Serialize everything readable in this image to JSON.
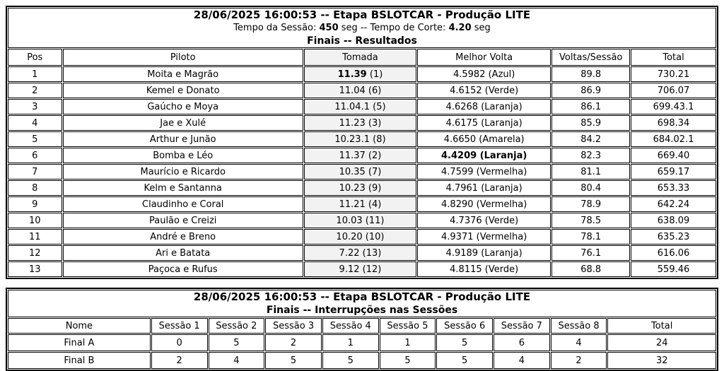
{
  "colors": {
    "border": "#000000",
    "text": "#000000",
    "tomada_column_bg": "#f2f2f2",
    "page_bg": "#ffffff"
  },
  "results": {
    "title1": "28/06/2025 16:00:53 -- Etapa BSLOTCAR - Produção LITE",
    "title2": {
      "pre": "Tempo da Sessão: ",
      "session_time": "450",
      "mid": " seg -- Tempo de Corte: ",
      "cut_time": "4.20",
      "post": " seg"
    },
    "title3": "Finais -- Resultados",
    "columns": [
      "Pos",
      "Piloto",
      "Tomada",
      "Melhor Volta",
      "Voltas/Sessão",
      "Total"
    ],
    "rows": [
      {
        "pos": "1",
        "piloto": "Moita e Magrão",
        "tomada_value": "11.39",
        "tomada_rank": "(1)",
        "tomada_value_bold": true,
        "melhor_volta": "4.5982 (Azul)",
        "melhor_volta_bold": false,
        "voltas_sessao": "89.8",
        "total": "730.21"
      },
      {
        "pos": "2",
        "piloto": "Kemel e Donato",
        "tomada_value": "11.04",
        "tomada_rank": "(6)",
        "tomada_value_bold": false,
        "melhor_volta": "4.6152 (Verde)",
        "melhor_volta_bold": false,
        "voltas_sessao": "86.9",
        "total": "706.07"
      },
      {
        "pos": "3",
        "piloto": "Gaúcho e Moya",
        "tomada_value": "11.04.1",
        "tomada_rank": "(5)",
        "tomada_value_bold": false,
        "melhor_volta": "4.6268 (Laranja)",
        "melhor_volta_bold": false,
        "voltas_sessao": "86.1",
        "total": "699.43.1"
      },
      {
        "pos": "4",
        "piloto": "Jae e Xulé",
        "tomada_value": "11.23",
        "tomada_rank": "(3)",
        "tomada_value_bold": false,
        "melhor_volta": "4.6175 (Laranja)",
        "melhor_volta_bold": false,
        "voltas_sessao": "85.9",
        "total": "698.34"
      },
      {
        "pos": "5",
        "piloto": "Arthur e Junão",
        "tomada_value": "10.23.1",
        "tomada_rank": "(8)",
        "tomada_value_bold": false,
        "melhor_volta": "4.6650 (Amarela)",
        "melhor_volta_bold": false,
        "voltas_sessao": "84.2",
        "total": "684.02.1"
      },
      {
        "pos": "6",
        "piloto": "Bomba e Léo",
        "tomada_value": "11.37",
        "tomada_rank": "(2)",
        "tomada_value_bold": false,
        "melhor_volta": "4.4209 (Laranja)",
        "melhor_volta_bold": true,
        "voltas_sessao": "82.3",
        "total": "669.40"
      },
      {
        "pos": "7",
        "piloto": "Maurício e Ricardo",
        "tomada_value": "10.35",
        "tomada_rank": "(7)",
        "tomada_value_bold": false,
        "melhor_volta": "4.7599 (Vermelha)",
        "melhor_volta_bold": false,
        "voltas_sessao": "81.1",
        "total": "659.17"
      },
      {
        "pos": "8",
        "piloto": "Kelm e Santanna",
        "tomada_value": "10.23",
        "tomada_rank": "(9)",
        "tomada_value_bold": false,
        "melhor_volta": "4.7961 (Laranja)",
        "melhor_volta_bold": false,
        "voltas_sessao": "80.4",
        "total": "653.33"
      },
      {
        "pos": "9",
        "piloto": "Claudinho e Coral",
        "tomada_value": "11.21",
        "tomada_rank": "(4)",
        "tomada_value_bold": false,
        "melhor_volta": "4.8290 (Vermelha)",
        "melhor_volta_bold": false,
        "voltas_sessao": "78.9",
        "total": "642.24"
      },
      {
        "pos": "10",
        "piloto": "Paulão e Creizi",
        "tomada_value": "10.03",
        "tomada_rank": "(11)",
        "tomada_value_bold": false,
        "melhor_volta": "4.7376 (Verde)",
        "melhor_volta_bold": false,
        "voltas_sessao": "78.5",
        "total": "638.09"
      },
      {
        "pos": "11",
        "piloto": "André e Breno",
        "tomada_value": "10.20",
        "tomada_rank": "(10)",
        "tomada_value_bold": false,
        "melhor_volta": "4.9371 (Vermelha)",
        "melhor_volta_bold": false,
        "voltas_sessao": "78.1",
        "total": "635.23"
      },
      {
        "pos": "12",
        "piloto": "Ari e Batata",
        "tomada_value": "7.22",
        "tomada_rank": "(13)",
        "tomada_value_bold": false,
        "melhor_volta": "4.9189 (Laranja)",
        "melhor_volta_bold": false,
        "voltas_sessao": "76.1",
        "total": "616.06"
      },
      {
        "pos": "13",
        "piloto": "Paçoca e Rufus",
        "tomada_value": "9.12",
        "tomada_rank": "(12)",
        "tomada_value_bold": false,
        "melhor_volta": "4.8115 (Verde)",
        "melhor_volta_bold": false,
        "voltas_sessao": "68.8",
        "total": "559.46"
      }
    ]
  },
  "interrupcoes": {
    "title1": "28/06/2025 16:00:53 -- Etapa BSLOTCAR - Produção LITE",
    "title2": "Finais -- Interrupções nas Sessões",
    "columns": [
      "Nome",
      "Sessão 1",
      "Sessão 2",
      "Sessão 3",
      "Sessão 4",
      "Sessão 5",
      "Sessão 6",
      "Sessão 7",
      "Sessão 8",
      "Total"
    ],
    "rows": [
      {
        "nome": "Final A",
        "sessoes": [
          "0",
          "5",
          "2",
          "1",
          "1",
          "5",
          "6",
          "4"
        ],
        "total": "24"
      },
      {
        "nome": "Final B",
        "sessoes": [
          "2",
          "4",
          "5",
          "5",
          "5",
          "5",
          "4",
          "2"
        ],
        "total": "32"
      }
    ]
  }
}
